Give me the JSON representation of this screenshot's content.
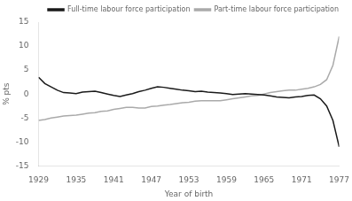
{
  "chart_data": {
    "type": "line",
    "xlabel": "Year of birth",
    "ylabel": "% pts",
    "x": [
      1929,
      1930,
      1931,
      1932,
      1933,
      1934,
      1935,
      1936,
      1937,
      1938,
      1939,
      1940,
      1941,
      1942,
      1943,
      1944,
      1945,
      1946,
      1947,
      1948,
      1949,
      1950,
      1951,
      1952,
      1953,
      1954,
      1955,
      1956,
      1957,
      1958,
      1959,
      1960,
      1961,
      1962,
      1963,
      1964,
      1965,
      1966,
      1967,
      1968,
      1969,
      1970,
      1971,
      1972,
      1973,
      1974,
      1975,
      1976,
      1977
    ],
    "series": [
      {
        "name": "Full-time labour force participation",
        "color": "#1a1a1a",
        "values": [
          3.5,
          2.2,
          1.5,
          0.8,
          0.3,
          0.2,
          0.1,
          0.4,
          0.5,
          0.6,
          0.3,
          0.0,
          -0.3,
          -0.5,
          -0.2,
          0.1,
          0.5,
          0.8,
          1.2,
          1.5,
          1.4,
          1.2,
          1.0,
          0.8,
          0.7,
          0.5,
          0.6,
          0.4,
          0.3,
          0.2,
          0.1,
          -0.1,
          0.0,
          0.1,
          0.0,
          -0.1,
          -0.2,
          -0.4,
          -0.6,
          -0.7,
          -0.8,
          -0.6,
          -0.5,
          -0.3,
          -0.2,
          -1.0,
          -2.5,
          -5.5,
          -11.0
        ]
      },
      {
        "name": "Part-time labour force participation",
        "color": "#aaaaaa",
        "values": [
          -5.5,
          -5.3,
          -5.0,
          -4.8,
          -4.6,
          -4.5,
          -4.4,
          -4.2,
          -4.0,
          -3.9,
          -3.6,
          -3.5,
          -3.2,
          -3.0,
          -2.8,
          -2.8,
          -2.9,
          -2.9,
          -2.6,
          -2.5,
          -2.3,
          -2.2,
          -2.0,
          -1.8,
          -1.7,
          -1.5,
          -1.4,
          -1.4,
          -1.4,
          -1.4,
          -1.2,
          -1.0,
          -0.8,
          -0.6,
          -0.4,
          -0.3,
          0.0,
          0.3,
          0.5,
          0.7,
          0.8,
          0.8,
          1.0,
          1.2,
          1.5,
          2.0,
          3.0,
          6.0,
          12.0
        ]
      }
    ],
    "xlim": [
      1929,
      1977
    ],
    "ylim": [
      -15,
      15
    ],
    "xticks": [
      1929,
      1935,
      1941,
      1947,
      1953,
      1959,
      1965,
      1971,
      1977
    ],
    "yticks": [
      -15,
      -10,
      -5,
      0,
      5,
      10,
      15
    ],
    "grid": false,
    "legend": "upper right"
  }
}
